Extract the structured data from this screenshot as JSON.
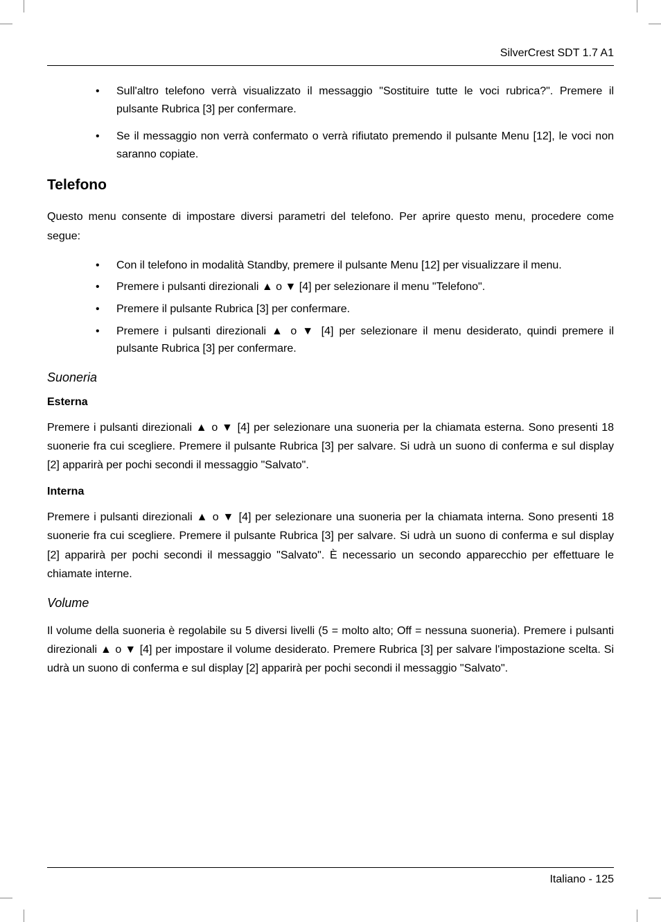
{
  "header": {
    "title": "SilverCrest SDT 1.7 A1"
  },
  "intro_bullets": [
    "Sull'altro telefono verrà visualizzato il messaggio \"Sostituire tutte le voci rubrica?\". Premere il pulsante Rubrica [3] per confermare.",
    "Se il messaggio non verrà confermato o verrà rifiutato premendo il pulsante Menu [12], le voci non saranno copiate."
  ],
  "telefono": {
    "heading": "Telefono",
    "intro": "Questo menu consente di impostare diversi parametri del telefono. Per aprire questo menu, procedere come segue:",
    "bullets": [
      "Con il telefono in modalità Standby, premere il pulsante Menu [12] per visualizzare il menu.",
      "Premere i pulsanti direzionali ▲ o ▼ [4] per selezionare il menu \"Telefono\".",
      "Premere il pulsante Rubrica [3] per confermare.",
      "Premere i pulsanti direzionali ▲ o ▼ [4] per selezionare il menu desiderato, quindi premere il pulsante Rubrica [3] per confermare."
    ]
  },
  "suoneria": {
    "heading": "Suoneria",
    "esterna": {
      "heading": "Esterna",
      "text": "Premere i pulsanti direzionali ▲ o ▼ [4] per selezionare una suoneria per la chiamata esterna. Sono presenti 18 suonerie fra cui scegliere. Premere il pulsante Rubrica [3] per salvare. Si udrà un suono di conferma e sul display [2] apparirà per pochi secondi il messaggio \"Salvato\"."
    },
    "interna": {
      "heading": "Interna",
      "text": "Premere i pulsanti direzionali ▲ o ▼ [4] per selezionare una suoneria per la chiamata interna. Sono presenti 18 suonerie fra cui scegliere. Premere il pulsante Rubrica [3] per salvare. Si udrà un suono di conferma e sul display [2] apparirà per pochi secondi il messaggio \"Salvato\". È necessario un secondo apparecchio per effettuare le chiamate interne."
    }
  },
  "volume": {
    "heading": "Volume",
    "text": "Il volume della suoneria è regolabile su 5 diversi livelli (5 = molto alto; Off = nessuna suoneria). Premere i pulsanti direzionali ▲ o ▼ [4] per impostare il volume desiderato. Premere Rubrica [3] per salvare l'impostazione scelta. Si udrà un suono di conferma e sul display [2] apparirà per pochi secondi il messaggio \"Salvato\"."
  },
  "footer": {
    "text": "Italiano - 125"
  }
}
